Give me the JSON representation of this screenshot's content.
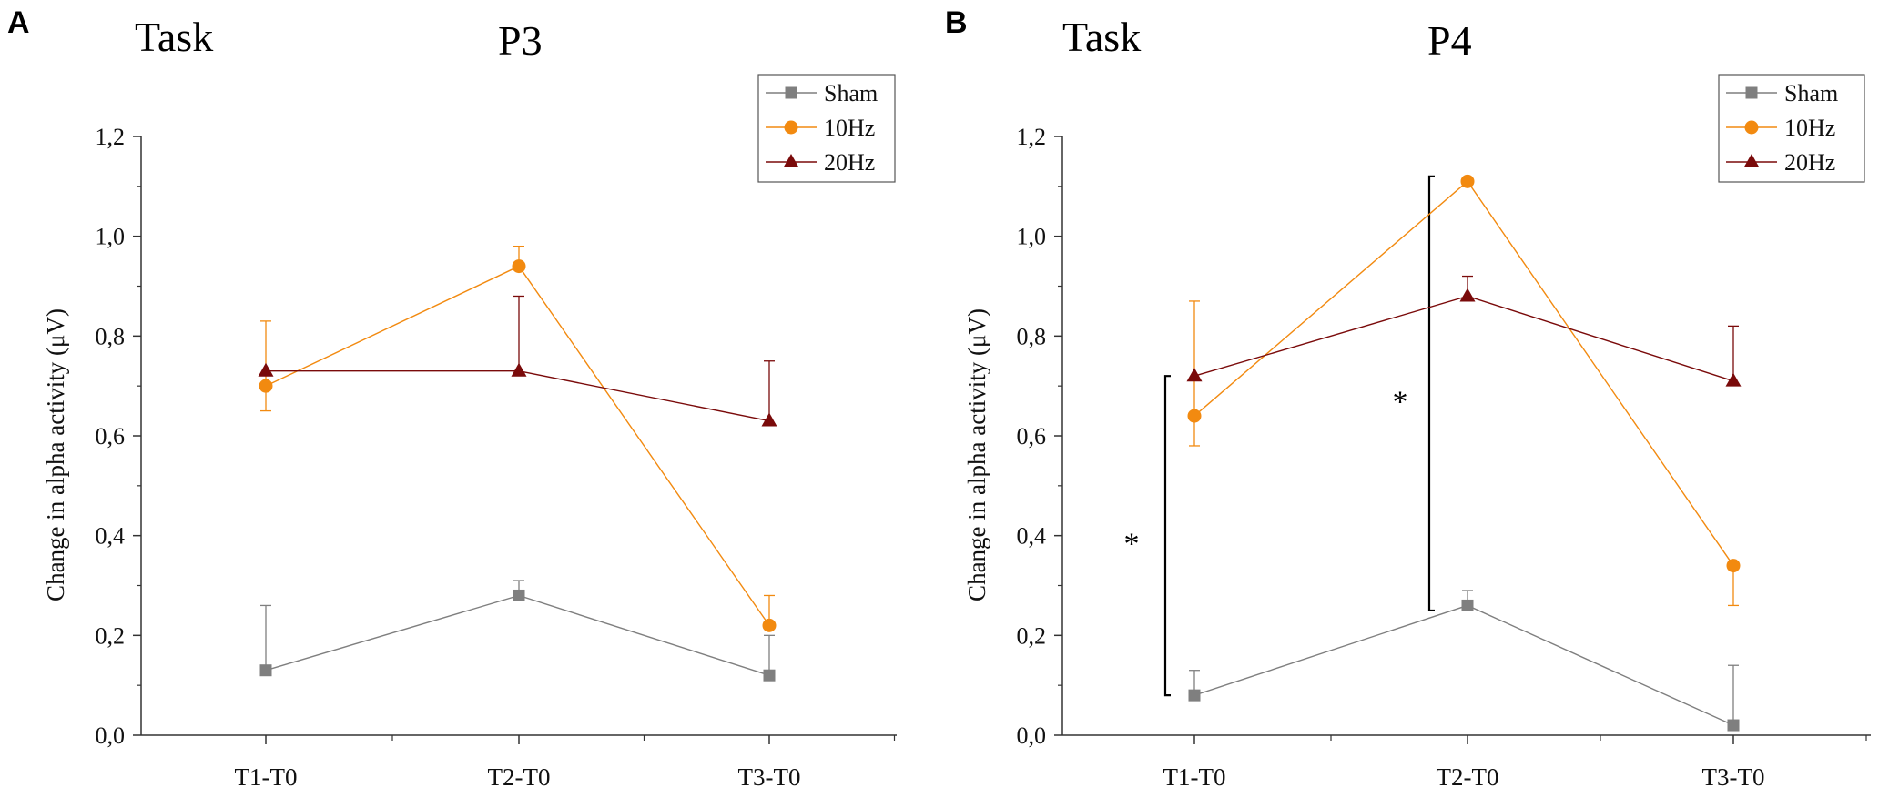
{
  "chart_data": [
    {
      "panel_letter": "A",
      "condition": "Task",
      "title": "P3",
      "type": "line",
      "categories": [
        "T1-T0",
        "T2-T0",
        "T3-T0"
      ],
      "ylabel": "Change in alpha activity (μV)",
      "xlabel": "",
      "ylim": [
        0,
        1.2
      ],
      "yticks": [
        "0,0",
        "0,2",
        "0,4",
        "0,6",
        "0,8",
        "1,0",
        "1,2"
      ],
      "legend_position": "top-right",
      "series": [
        {
          "name": "Sham",
          "color": "#7f7f7f",
          "marker": "square",
          "values": [
            0.13,
            0.28,
            0.12
          ],
          "err_upper": [
            0.26,
            0.31,
            0.2
          ],
          "err_lower": [
            null,
            null,
            null
          ]
        },
        {
          "name": "10Hz",
          "color": "#f28a10",
          "marker": "circle",
          "values": [
            0.7,
            0.94,
            0.22
          ],
          "err_upper": [
            0.83,
            0.98,
            0.28
          ],
          "err_lower": [
            0.65,
            null,
            null
          ]
        },
        {
          "name": "20Hz",
          "color": "#7a0a0a",
          "marker": "triangle",
          "values": [
            0.73,
            0.73,
            0.63
          ],
          "err_upper": [
            null,
            0.88,
            0.75
          ],
          "err_lower": [
            null,
            null,
            null
          ]
        }
      ],
      "significance": []
    },
    {
      "panel_letter": "B",
      "condition": "Task",
      "title": "P4",
      "type": "line",
      "categories": [
        "T1-T0",
        "T2-T0",
        "T3-T0"
      ],
      "ylabel": "Change in alpha activity (μV)",
      "xlabel": "",
      "ylim": [
        0,
        1.2
      ],
      "yticks": [
        "0,0",
        "0,2",
        "0,4",
        "0,6",
        "0,8",
        "1,0",
        "1,2"
      ],
      "legend_position": "top-right",
      "series": [
        {
          "name": "Sham",
          "color": "#7f7f7f",
          "marker": "square",
          "values": [
            0.08,
            0.26,
            0.02
          ],
          "err_upper": [
            0.13,
            0.29,
            0.14
          ],
          "err_lower": [
            null,
            null,
            null
          ]
        },
        {
          "name": "10Hz",
          "color": "#f28a10",
          "marker": "circle",
          "values": [
            0.64,
            1.11,
            0.34
          ],
          "err_upper": [
            0.87,
            null,
            null
          ],
          "err_lower": [
            0.58,
            null,
            0.26
          ]
        },
        {
          "name": "20Hz",
          "color": "#7a0a0a",
          "marker": "triangle",
          "values": [
            0.72,
            0.88,
            0.71
          ],
          "err_upper": [
            null,
            0.92,
            0.82
          ],
          "err_lower": [
            null,
            null,
            null
          ]
        }
      ],
      "significance": [
        {
          "category_index": 0,
          "low": 0.08,
          "high": 0.72,
          "label": "*"
        },
        {
          "category_index": 1,
          "low": 0.25,
          "high": 1.12,
          "label": "*"
        }
      ]
    }
  ]
}
